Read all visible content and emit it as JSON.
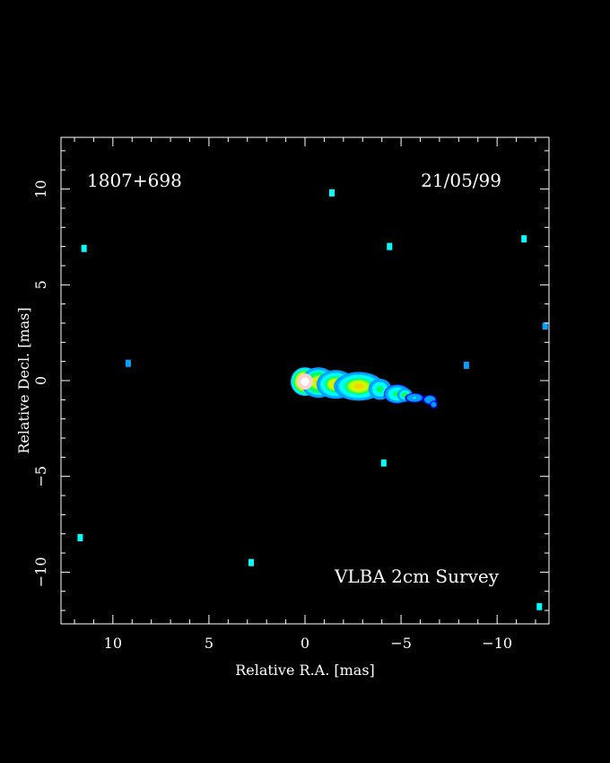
{
  "chart_data": {
    "type": "heatmap",
    "source_name": "1807+698",
    "observation_date": "21/05/99",
    "survey_label": "VLBA 2cm Survey",
    "xlabel": "Relative R.A. [mas]",
    "ylabel": "Relative Decl. [mas]",
    "xlim": [
      12.7,
      -12.7
    ],
    "ylim": [
      -12.7,
      12.7
    ],
    "x_ticks": [
      10,
      5,
      0,
      -5,
      -10
    ],
    "y_ticks": [
      10,
      5,
      0,
      -5,
      -10
    ],
    "x_tick_labels": [
      "10",
      "5",
      "0",
      "−5",
      "−10"
    ],
    "y_tick_labels": [
      "10",
      "5",
      "0",
      "−5",
      "−10"
    ],
    "colormap": [
      "#0000ff",
      "#00a0ff",
      "#00ffff",
      "#00ff60",
      "#c8ff00",
      "#ffd000",
      "#ff6000",
      "#ff1000",
      "#ffc0c0",
      "#ffffff"
    ],
    "components": [
      {
        "x": 0.0,
        "y": -0.05,
        "rx": 0.75,
        "ry": 0.75,
        "intensity": 1.0
      },
      {
        "x": -0.7,
        "y": -0.1,
        "rx": 0.9,
        "ry": 0.8,
        "intensity": 0.62
      },
      {
        "x": -1.6,
        "y": -0.2,
        "rx": 1.0,
        "ry": 0.75,
        "intensity": 0.58
      },
      {
        "x": -2.8,
        "y": -0.3,
        "rx": 1.3,
        "ry": 0.75,
        "intensity": 0.58
      },
      {
        "x": -3.9,
        "y": -0.45,
        "rx": 0.6,
        "ry": 0.55,
        "intensity": 0.38
      },
      {
        "x": -4.8,
        "y": -0.7,
        "rx": 0.7,
        "ry": 0.5,
        "intensity": 0.36
      },
      {
        "x": -5.2,
        "y": -0.75,
        "rx": 0.4,
        "ry": 0.35,
        "intensity": 0.42
      },
      {
        "x": -5.7,
        "y": -0.9,
        "rx": 0.5,
        "ry": 0.25,
        "intensity": 0.2
      },
      {
        "x": -6.5,
        "y": -1.0,
        "rx": 0.35,
        "ry": 0.25,
        "intensity": 0.16
      },
      {
        "x": -6.7,
        "y": -1.25,
        "rx": 0.2,
        "ry": 0.2,
        "intensity": 0.15
      }
    ],
    "noise_spots": [
      {
        "x": 11.5,
        "y": 6.9,
        "intensity": 0.14
      },
      {
        "x": -1.4,
        "y": 9.8,
        "intensity": 0.15
      },
      {
        "x": -4.4,
        "y": 7.0,
        "intensity": 0.12
      },
      {
        "x": -11.4,
        "y": 7.4,
        "intensity": 0.13
      },
      {
        "x": -12.5,
        "y": 2.85,
        "intensity": 0.1
      },
      {
        "x": 9.2,
        "y": 0.9,
        "intensity": 0.06
      },
      {
        "x": -8.4,
        "y": 0.8,
        "intensity": 0.06
      },
      {
        "x": -4.1,
        "y": -4.3,
        "intensity": 0.13
      },
      {
        "x": 11.7,
        "y": -8.2,
        "intensity": 0.14
      },
      {
        "x": 2.8,
        "y": -9.5,
        "intensity": 0.15
      },
      {
        "x": -12.2,
        "y": -11.8,
        "intensity": 0.14
      }
    ]
  }
}
